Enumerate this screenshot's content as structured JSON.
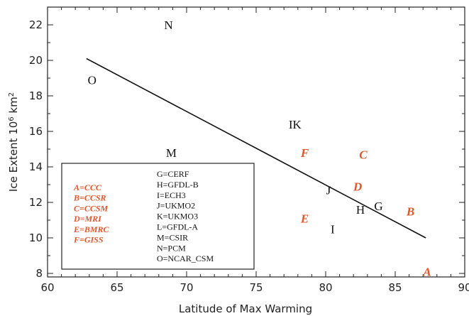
{
  "chart_data": {
    "type": "scatter",
    "xlabel": "Latitude of Max Warming",
    "ylabel_main": "Ice Extent 10",
    "ylabel_exp": "6",
    "ylabel_unit": " km",
    "ylabel_unit_exp": "2",
    "xlim": [
      60,
      90
    ],
    "ylim": [
      7.8,
      23
    ],
    "x_ticks": [
      "60",
      "65",
      "70",
      "75",
      "80",
      "85",
      "90"
    ],
    "y_ticks": [
      "8",
      "10",
      "12",
      "14",
      "16",
      "18",
      "20",
      "22"
    ],
    "points": [
      {
        "label": "N",
        "x": 68.7,
        "y": 22.0,
        "color": "black"
      },
      {
        "label": "O",
        "x": 63.2,
        "y": 18.9,
        "color": "black"
      },
      {
        "label": "IK",
        "x": 77.8,
        "y": 16.4,
        "color": "black"
      },
      {
        "label": "M",
        "x": 68.9,
        "y": 14.8,
        "color": "black"
      },
      {
        "label": "F",
        "x": 78.5,
        "y": 14.8,
        "color": "orange"
      },
      {
        "label": "C",
        "x": 82.7,
        "y": 14.7,
        "color": "orange"
      },
      {
        "label": "D",
        "x": 82.3,
        "y": 12.9,
        "color": "orange"
      },
      {
        "label": "J",
        "x": 80.2,
        "y": 12.7,
        "color": "black"
      },
      {
        "label": "G",
        "x": 83.8,
        "y": 11.8,
        "color": "black"
      },
      {
        "label": "H",
        "x": 82.5,
        "y": 11.6,
        "color": "black"
      },
      {
        "label": "B",
        "x": 86.1,
        "y": 11.5,
        "color": "orange"
      },
      {
        "label": "E",
        "x": 78.5,
        "y": 11.1,
        "color": "orange"
      },
      {
        "label": "I",
        "x": 80.5,
        "y": 10.5,
        "color": "black"
      },
      {
        "label": "A",
        "x": 87.3,
        "y": 8.1,
        "color": "orange"
      }
    ],
    "fit_line": {
      "x": [
        62.8,
        87.2
      ],
      "y": [
        20.1,
        10.0
      ]
    },
    "legend_left": [
      "A=CCC",
      "B=CCSR",
      "C=CCSM",
      "D=MRI",
      "E=BMRC",
      "F=GISS"
    ],
    "legend_right": [
      "G=CERF",
      "H=GFDL-B",
      "I=ECH3",
      "J=UKMO2",
      "K=UKMO3",
      "L=GFDL-A",
      "M=CSIR",
      "N=PCM",
      "O=NCAR_CSM"
    ],
    "colors": {
      "orange": "#e0562b",
      "black": "#111111"
    },
    "grid": false,
    "legend_position": "bottom-left"
  }
}
